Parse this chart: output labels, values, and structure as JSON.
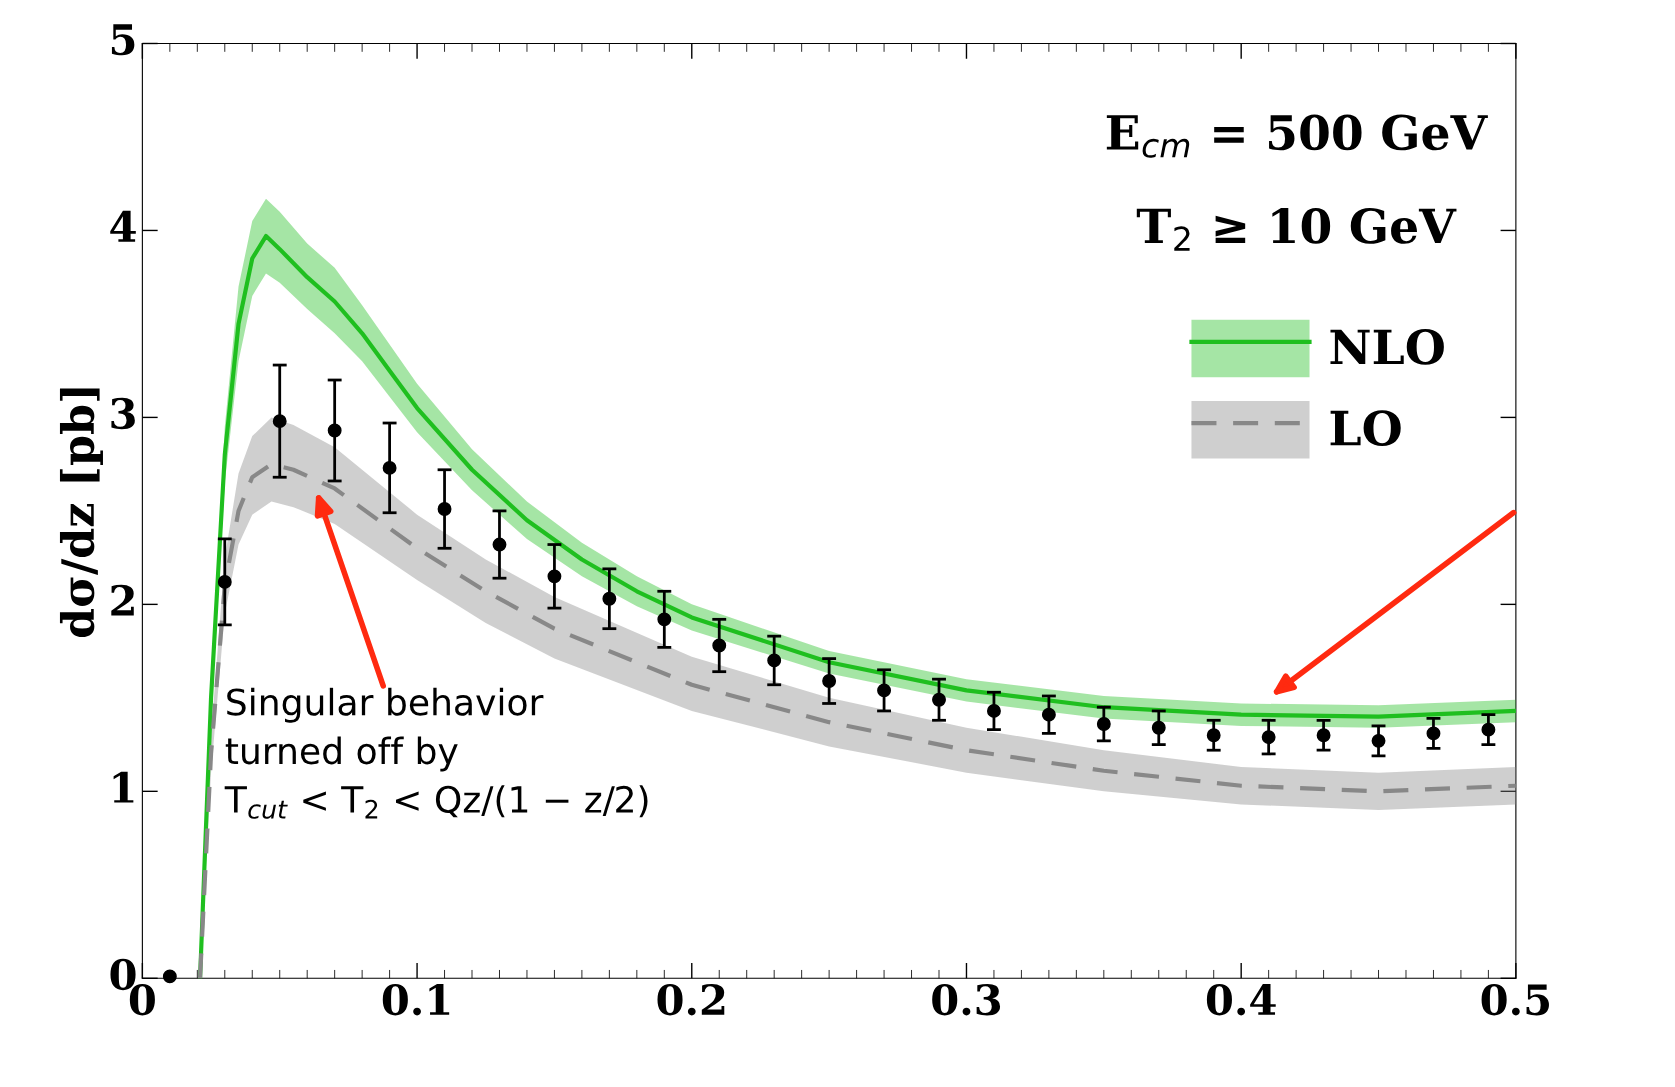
{
  "chart_data": {
    "type": "line",
    "ylabel": "dσ/dz [pb]",
    "xlim": [
      0,
      0.5
    ],
    "ylim": [
      0,
      5
    ],
    "xticks": [
      0,
      0.1,
      0.2,
      0.3,
      0.4,
      0.5
    ],
    "yticks": [
      0,
      1,
      2,
      3,
      4,
      5
    ],
    "grid": false,
    "legend": "top right",
    "annotations": [
      "E$_{cm}$ = 500 GeV",
      "T$_{2}$ ≥ 10 GeV",
      "Singular behavior\nturned off by\nT$_{cut}$ < T$_{2}$ < Qz/(1 − z/2)"
    ],
    "series": [
      {
        "name": "NLO",
        "color": "#1fbf1f",
        "line_style": "solid",
        "marker": "none",
        "x": [
          0.021,
          0.025,
          0.03,
          0.035,
          0.04,
          0.045,
          0.05,
          0.06,
          0.07,
          0.08,
          0.09,
          0.1,
          0.12,
          0.14,
          0.16,
          0.18,
          0.2,
          0.25,
          0.3,
          0.35,
          0.4,
          0.45,
          0.5
        ],
        "values": [
          0,
          1.5,
          2.8,
          3.5,
          3.85,
          3.97,
          3.9,
          3.75,
          3.62,
          3.45,
          3.25,
          3.05,
          2.72,
          2.45,
          2.24,
          2.07,
          1.93,
          1.69,
          1.54,
          1.45,
          1.41,
          1.4,
          1.43
        ],
        "lower": [
          0,
          1.4,
          2.65,
          3.3,
          3.65,
          3.77,
          3.72,
          3.58,
          3.45,
          3.3,
          3.11,
          2.92,
          2.61,
          2.35,
          2.15,
          1.99,
          1.86,
          1.63,
          1.48,
          1.39,
          1.35,
          1.34,
          1.37
        ],
        "upper": [
          0,
          1.6,
          2.95,
          3.7,
          4.05,
          4.17,
          4.1,
          3.93,
          3.8,
          3.6,
          3.39,
          3.18,
          2.83,
          2.55,
          2.33,
          2.15,
          2.0,
          1.75,
          1.6,
          1.51,
          1.47,
          1.46,
          1.49
        ]
      },
      {
        "name": "LO",
        "color": "#888888",
        "line_style": "dashed",
        "marker": "none",
        "x": [
          0.021,
          0.025,
          0.03,
          0.035,
          0.04,
          0.047,
          0.055,
          0.07,
          0.085,
          0.1,
          0.125,
          0.15,
          0.2,
          0.25,
          0.3,
          0.35,
          0.4,
          0.45,
          0.5
        ],
        "values": [
          0,
          1.2,
          2.1,
          2.5,
          2.68,
          2.75,
          2.72,
          2.62,
          2.46,
          2.3,
          2.07,
          1.87,
          1.57,
          1.37,
          1.22,
          1.11,
          1.03,
          1.0,
          1.03
        ],
        "lower": [
          0,
          1.1,
          1.95,
          2.32,
          2.48,
          2.55,
          2.52,
          2.43,
          2.28,
          2.13,
          1.9,
          1.71,
          1.43,
          1.24,
          1.1,
          1.0,
          0.93,
          0.9,
          0.93
        ],
        "upper": [
          0,
          1.3,
          2.25,
          2.7,
          2.9,
          3.0,
          2.96,
          2.84,
          2.66,
          2.48,
          2.24,
          2.04,
          1.72,
          1.5,
          1.34,
          1.22,
          1.13,
          1.1,
          1.13
        ]
      },
      {
        "type": "scatter",
        "color": "#000000",
        "marker": "circle",
        "x": [
          0.01,
          0.03,
          0.05,
          0.07,
          0.09,
          0.11,
          0.13,
          0.15,
          0.17,
          0.19,
          0.21,
          0.23,
          0.25,
          0.27,
          0.29,
          0.31,
          0.33,
          0.35,
          0.37,
          0.39,
          0.41,
          0.43,
          0.45,
          0.47,
          0.49
        ],
        "values": [
          0.01,
          2.12,
          2.98,
          2.93,
          2.73,
          2.51,
          2.32,
          2.15,
          2.03,
          1.92,
          1.78,
          1.7,
          1.59,
          1.54,
          1.49,
          1.43,
          1.41,
          1.36,
          1.34,
          1.3,
          1.29,
          1.3,
          1.27,
          1.31,
          1.33
        ],
        "errors": [
          null,
          0.23,
          0.3,
          0.27,
          0.24,
          0.21,
          0.18,
          0.17,
          0.16,
          0.15,
          0.14,
          0.13,
          0.12,
          0.11,
          0.11,
          0.1,
          0.1,
          0.09,
          0.09,
          0.08,
          0.09,
          0.08,
          0.08,
          0.08,
          0.08
        ]
      }
    ]
  }
}
